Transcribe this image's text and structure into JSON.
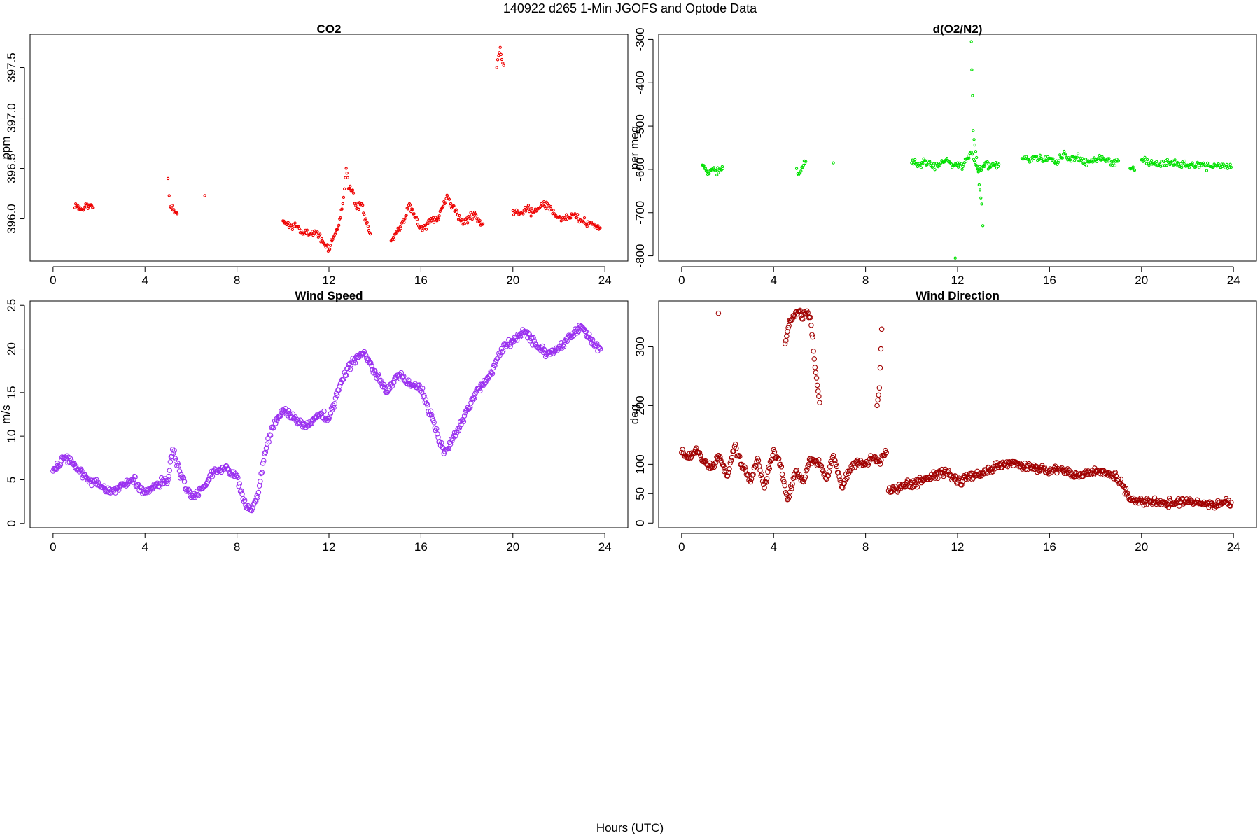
{
  "figure": {
    "title": "140922   d265   1-Min  JGOFS and Optode Data",
    "xlabel": "Hours (UTC)"
  },
  "chart_data": [
    {
      "id": "co2",
      "type": "scatter",
      "title": "CO2",
      "xlabel": "",
      "ylabel": "ppm",
      "xlim": [
        -1,
        25
      ],
      "ylim": [
        395.58,
        397.83
      ],
      "xticks": [
        0,
        4,
        8,
        12,
        16,
        20,
        24
      ],
      "yticks": [
        396.0,
        396.5,
        397.0,
        397.5
      ],
      "ytick_labels": [
        "396.0",
        "396.5",
        "397.0",
        "397.5"
      ],
      "ytick_rotated": true,
      "color": "#ee0000",
      "marker_radius": 1.6,
      "segments": [
        {
          "x": [
            0.95,
            1.05,
            1.15,
            1.25,
            1.35,
            1.45,
            1.55,
            1.65,
            1.75
          ],
          "y": [
            396.11,
            396.12,
            396.1,
            396.09,
            396.11,
            396.13,
            396.12,
            396.14,
            396.11
          ]
        },
        {
          "x": [
            5.0,
            5.05,
            5.1,
            5.4,
            6.6
          ],
          "y": [
            396.4,
            396.23,
            396.12,
            396.05,
            396.23
          ]
        },
        {
          "x": [
            10.0,
            10.3,
            10.6,
            10.9,
            11.2,
            11.5,
            11.8,
            12.0,
            12.2,
            12.4,
            12.6,
            12.75,
            12.85,
            13.0,
            13.2,
            13.4,
            13.6,
            13.8
          ],
          "y": [
            395.98,
            395.95,
            395.92,
            395.86,
            395.85,
            395.87,
            395.75,
            395.7,
            395.82,
            395.93,
            396.15,
            396.5,
            396.3,
            396.28,
            396.1,
            396.15,
            396.0,
            395.85
          ]
        },
        {
          "x": [
            14.7,
            14.9,
            15.1,
            15.3,
            15.5,
            15.7,
            15.9,
            16.1,
            16.3,
            16.5,
            16.7,
            16.9,
            17.1,
            17.3,
            17.5,
            17.7,
            17.9,
            18.1,
            18.3,
            18.5,
            18.7
          ],
          "y": [
            395.78,
            395.85,
            395.92,
            396.0,
            396.15,
            396.05,
            395.93,
            395.9,
            395.95,
            396.0,
            395.98,
            396.1,
            396.2,
            396.15,
            396.08,
            396.0,
            395.95,
            396.02,
            396.05,
            396.0,
            395.95
          ]
        },
        {
          "x": [
            19.3,
            19.38,
            19.45,
            19.52,
            19.6
          ],
          "y": [
            397.5,
            397.62,
            397.7,
            397.58,
            397.52
          ]
        },
        {
          "x": [
            20.0,
            20.3,
            20.6,
            20.9,
            21.2,
            21.5,
            21.8,
            22.1,
            22.4,
            22.7,
            23.0,
            23.3,
            23.6,
            23.8
          ],
          "y": [
            396.08,
            396.05,
            396.1,
            396.06,
            396.12,
            396.15,
            396.05,
            395.98,
            396.02,
            396.05,
            395.97,
            395.95,
            395.93,
            395.91
          ]
        }
      ]
    },
    {
      "id": "o2n2",
      "type": "scatter",
      "title": "d(O2/N2)",
      "xlabel": "",
      "ylabel": "per meg",
      "xlim": [
        -1,
        25
      ],
      "ylim": [
        -812,
        -288
      ],
      "xticks": [
        0,
        4,
        8,
        12,
        16,
        20,
        24
      ],
      "yticks": [
        -800,
        -700,
        -600,
        -500,
        -400,
        -300
      ],
      "ytick_labels": [
        "-800",
        "-700",
        "-600",
        "-500",
        "-400",
        "-300"
      ],
      "ytick_rotated": true,
      "color": "#00e000",
      "marker_radius": 1.6,
      "segments": [
        {
          "x": [
            0.9,
            1.0,
            1.1,
            1.2,
            1.3,
            1.4,
            1.5,
            1.6,
            1.7,
            1.8
          ],
          "y": [
            -590,
            -598,
            -605,
            -610,
            -600,
            -596,
            -603,
            -608,
            -600,
            -598
          ]
        },
        {
          "x": [
            5.0,
            5.05,
            5.4,
            6.6
          ],
          "y": [
            -598,
            -610,
            -582,
            -585
          ]
        },
        {
          "x": [
            10.0,
            10.3,
            10.6,
            10.9,
            11.2,
            11.5,
            11.8,
            12.0,
            12.2,
            12.4,
            12.6,
            12.8,
            13.0,
            13.2,
            13.4,
            13.6,
            13.8
          ],
          "y": [
            -585,
            -590,
            -580,
            -595,
            -588,
            -578,
            -592,
            -585,
            -600,
            -575,
            -560,
            -590,
            -600,
            -585,
            -595,
            -590,
            -588
          ]
        },
        {
          "x": [
            12.6,
            12.62,
            12.65,
            12.68,
            13.05,
            13.1,
            11.9
          ],
          "y": [
            -305,
            -370,
            -430,
            -510,
            -680,
            -730,
            -805
          ]
        },
        {
          "x": [
            14.8,
            15.1,
            15.4,
            15.7,
            16.0,
            16.3,
            16.6,
            16.9,
            17.2,
            17.5,
            17.8,
            18.1,
            18.4,
            18.7,
            19.0
          ],
          "y": [
            -575,
            -578,
            -570,
            -582,
            -574,
            -580,
            -565,
            -578,
            -572,
            -585,
            -580,
            -575,
            -578,
            -582,
            -580
          ]
        },
        {
          "x": [
            19.5,
            19.7
          ],
          "y": [
            -598,
            -602
          ]
        },
        {
          "x": [
            20.0,
            20.4,
            20.8,
            21.2,
            21.6,
            22.0,
            22.4,
            22.8,
            23.2,
            23.6,
            23.9
          ],
          "y": [
            -578,
            -585,
            -588,
            -584,
            -587,
            -590,
            -588,
            -592,
            -590,
            -592,
            -595
          ]
        }
      ]
    },
    {
      "id": "wind-speed",
      "type": "scatter",
      "title": "Wind Speed",
      "xlabel": "",
      "ylabel": "m/s",
      "xlim": [
        -1,
        25
      ],
      "ylim": [
        -0.5,
        25.5
      ],
      "xticks": [
        0,
        4,
        8,
        12,
        16,
        20,
        24
      ],
      "yticks": [
        0,
        5,
        10,
        15,
        20,
        25
      ],
      "ytick_labels": [
        "0",
        "5",
        "10",
        "15",
        "20",
        "25"
      ],
      "ytick_rotated": true,
      "color": "#9a30f0",
      "marker_radius": 3.2,
      "segments": [
        {
          "x": [
            0.0,
            0.5,
            1.0,
            1.5,
            2.0,
            2.5,
            3.0,
            3.5,
            4.0,
            4.5,
            5.0,
            5.2,
            5.5,
            6.0,
            6.5,
            7.0,
            7.5,
            8.0,
            8.3,
            8.6,
            8.9,
            9.2,
            9.5,
            10.0,
            10.5,
            11.0,
            11.5,
            12.0,
            12.5,
            13.0,
            13.5,
            14.0,
            14.5,
            15.0,
            15.5,
            16.0,
            16.5,
            17.0,
            17.5,
            18.0,
            18.5,
            19.0,
            19.5,
            20.0,
            20.5,
            21.0,
            21.5,
            22.0,
            22.5,
            23.0,
            23.5,
            23.8
          ],
          "y": [
            6.0,
            7.5,
            6.5,
            5.0,
            4.5,
            3.5,
            4.5,
            5.0,
            3.5,
            4.5,
            5.0,
            8.5,
            6.0,
            3.0,
            4.0,
            6.0,
            6.5,
            5.5,
            2.5,
            1.5,
            3.0,
            8.0,
            11.0,
            13.0,
            12.0,
            11.0,
            12.5,
            12.0,
            16.0,
            18.5,
            19.5,
            17.5,
            15.0,
            17.0,
            16.0,
            15.5,
            12.0,
            8.0,
            10.0,
            13.0,
            15.5,
            17.0,
            20.0,
            21.0,
            22.0,
            20.5,
            19.5,
            20.0,
            21.5,
            22.5,
            20.5,
            20.0
          ]
        }
      ]
    },
    {
      "id": "wind-direction",
      "type": "scatter",
      "title": "Wind Direction",
      "xlabel": "",
      "ylabel": "deg",
      "xlim": [
        -1,
        25
      ],
      "ylim": [
        -8,
        378
      ],
      "xticks": [
        0,
        4,
        8,
        12,
        16,
        20,
        24
      ],
      "yticks": [
        0,
        50,
        100,
        200,
        300
      ],
      "ytick_labels": [
        "0",
        "50",
        "100",
        "200",
        "300"
      ],
      "ytick_rotated": true,
      "color": "#a00000",
      "marker_radius": 3.2,
      "segments": [
        {
          "x": [
            0.0,
            0.3,
            0.6,
            1.0,
            1.3,
            1.6,
            2.0,
            2.3,
            2.6,
            3.0,
            3.3,
            3.6,
            4.0,
            4.3,
            4.6,
            5.0,
            5.3,
            5.6,
            6.0,
            6.3,
            6.6,
            7.0,
            7.3,
            7.6,
            8.0,
            8.3,
            8.6,
            8.9
          ],
          "y": [
            120,
            110,
            125,
            105,
            95,
            115,
            80,
            130,
            100,
            70,
            110,
            60,
            125,
            100,
            40,
            90,
            70,
            110,
            100,
            75,
            115,
            60,
            90,
            105,
            100,
            110,
            105,
            120
          ]
        },
        {
          "x": [
            1.6,
            4.5,
            4.7,
            5.0,
            5.3,
            5.6,
            5.8,
            6.0,
            8.5,
            8.6,
            8.7
          ],
          "y": [
            357,
            305,
            345,
            360,
            355,
            350,
            265,
            205,
            200,
            230,
            330
          ]
        },
        {
          "x": [
            9.0,
            9.5,
            10.0,
            10.5,
            11.0,
            11.5,
            12.0,
            12.5,
            13.0,
            13.5,
            14.0,
            14.5,
            15.0,
            15.5,
            16.0,
            16.5,
            17.0,
            17.5,
            18.0,
            18.5,
            19.0,
            19.5,
            20.0,
            20.5,
            21.0,
            21.5,
            22.0,
            22.5,
            23.0,
            23.5,
            23.9
          ],
          "y": [
            55,
            62,
            68,
            72,
            82,
            88,
            70,
            78,
            85,
            92,
            100,
            103,
            97,
            92,
            90,
            92,
            80,
            85,
            88,
            85,
            75,
            40,
            38,
            35,
            34,
            35,
            36,
            33,
            30,
            33,
            35
          ]
        }
      ]
    }
  ]
}
